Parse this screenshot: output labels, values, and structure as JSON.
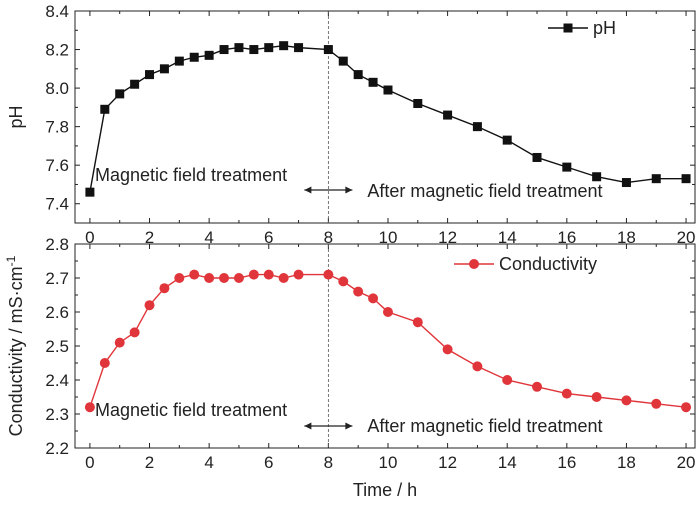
{
  "chart_data": [
    {
      "type": "line",
      "ylabel": "pH",
      "xlabel": "",
      "xlim": [
        -0.5,
        20.3
      ],
      "ylim": [
        7.3,
        8.4
      ],
      "xticks": [
        0,
        2,
        4,
        6,
        8,
        10,
        12,
        14,
        16,
        18,
        20
      ],
      "yticks": [
        7.4,
        7.6,
        7.8,
        8.0,
        8.2,
        8.4
      ],
      "ytick_decimals": 1,
      "legend_placement": "top-right",
      "series": [
        {
          "name": "pH",
          "color": "#111111",
          "marker": "square",
          "x": [
            0,
            0.5,
            1,
            1.5,
            2,
            2.5,
            3,
            3.5,
            4,
            4.5,
            5,
            5.5,
            6,
            6.5,
            7,
            8,
            8.5,
            9,
            9.5,
            10,
            11,
            12,
            13,
            14,
            15,
            16,
            17,
            18,
            19,
            20
          ],
          "y": [
            7.46,
            7.89,
            7.97,
            8.02,
            8.07,
            8.1,
            8.14,
            8.16,
            8.17,
            8.2,
            8.21,
            8.2,
            8.21,
            8.22,
            8.21,
            8.2,
            8.14,
            8.07,
            8.03,
            7.99,
            7.92,
            7.86,
            7.8,
            7.73,
            7.64,
            7.59,
            7.54,
            7.51,
            7.53,
            7.53
          ]
        }
      ],
      "annotations": {
        "treatment_label": "Magnetic field treatment",
        "after_label": "After magnetic field treatment",
        "divider_x": 8
      }
    },
    {
      "type": "line",
      "ylabel": "Conductivity / mS·cm",
      "ylabel_superscript": "-1",
      "xlabel": "Time / h",
      "xlim": [
        -0.5,
        20.3
      ],
      "ylim": [
        2.2,
        2.8
      ],
      "xticks": [
        0,
        2,
        4,
        6,
        8,
        10,
        12,
        14,
        16,
        18,
        20
      ],
      "yticks": [
        2.2,
        2.3,
        2.4,
        2.5,
        2.6,
        2.7,
        2.8
      ],
      "ytick_decimals": 1,
      "legend_placement": "top-right",
      "series": [
        {
          "name": "Conductivity",
          "color": "#e0353a",
          "marker": "circle",
          "x": [
            0,
            0.5,
            1,
            1.5,
            2,
            2.5,
            3,
            3.5,
            4,
            4.5,
            5,
            5.5,
            6,
            6.5,
            7,
            8,
            8.5,
            9,
            9.5,
            10,
            11,
            12,
            13,
            14,
            15,
            16,
            17,
            18,
            19,
            20
          ],
          "y": [
            2.32,
            2.45,
            2.51,
            2.54,
            2.62,
            2.67,
            2.7,
            2.71,
            2.7,
            2.7,
            2.7,
            2.71,
            2.71,
            2.7,
            2.71,
            2.71,
            2.69,
            2.66,
            2.64,
            2.6,
            2.57,
            2.49,
            2.44,
            2.4,
            2.38,
            2.36,
            2.35,
            2.34,
            2.33,
            2.32
          ]
        }
      ],
      "annotations": {
        "treatment_label": "Magnetic field treatment",
        "after_label": "After magnetic field treatment",
        "divider_x": 8
      }
    }
  ]
}
